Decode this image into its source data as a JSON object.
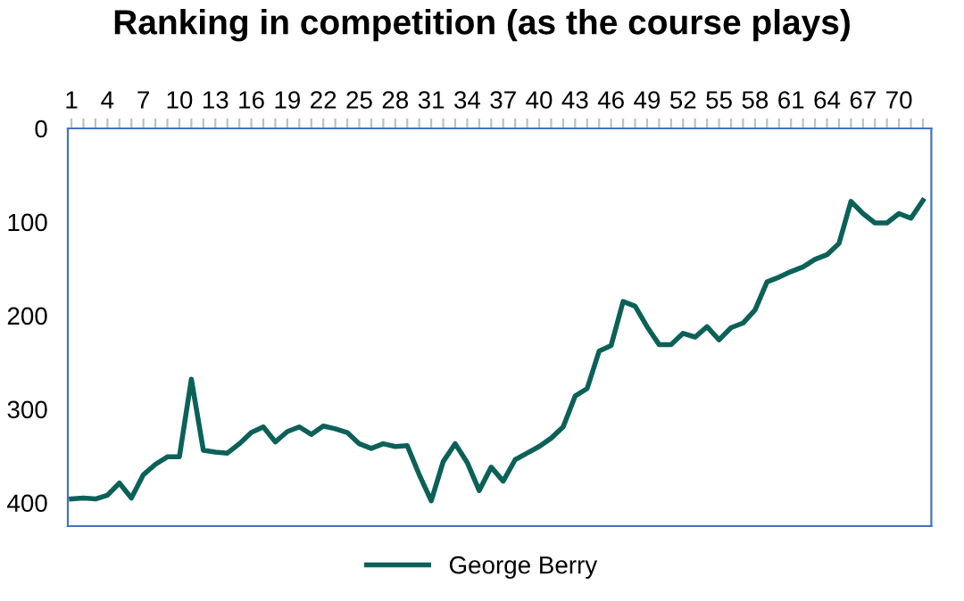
{
  "chart_data": {
    "type": "line",
    "title": "Ranking in competition (as the course plays)",
    "x": [
      1,
      2,
      3,
      4,
      5,
      6,
      7,
      8,
      9,
      10,
      11,
      12,
      13,
      14,
      15,
      16,
      17,
      18,
      19,
      20,
      21,
      22,
      23,
      24,
      25,
      26,
      27,
      28,
      29,
      30,
      31,
      32,
      33,
      34,
      35,
      36,
      37,
      38,
      39,
      40,
      41,
      42,
      43,
      44,
      45,
      46,
      47,
      48,
      49,
      50,
      51,
      52,
      53,
      54,
      55,
      56,
      57,
      58,
      59,
      60,
      61,
      62,
      63,
      64,
      65,
      66,
      67,
      68,
      69,
      70,
      71,
      72
    ],
    "series": [
      {
        "name": "George Berry",
        "color": "#0b6158",
        "values": [
          396,
          395,
          396,
          392,
          379,
          395,
          370,
          359,
          351,
          351,
          268,
          344,
          346,
          347,
          337,
          325,
          319,
          335,
          324,
          319,
          327,
          318,
          321,
          325,
          337,
          342,
          337,
          340,
          339,
          370,
          398,
          356,
          337,
          357,
          387,
          362,
          377,
          354,
          347,
          340,
          331,
          319,
          286,
          278,
          238,
          232,
          185,
          190,
          212,
          231,
          231,
          219,
          223,
          212,
          226,
          213,
          208,
          194,
          164,
          159,
          153,
          148,
          140,
          135,
          123,
          78,
          91,
          101,
          101,
          91,
          96,
          77
        ]
      }
    ],
    "xlim": [
      0.7,
      72.7
    ],
    "xticks": [
      1,
      {
        "value": 2,
        "label": null
      },
      {
        "value": 3,
        "label": null
      },
      4,
      {
        "value": 5,
        "label": null
      },
      {
        "value": 6,
        "label": null
      },
      7,
      {
        "value": 8,
        "label": null
      },
      {
        "value": 9,
        "label": null
      },
      10,
      {
        "value": 11,
        "label": null
      },
      {
        "value": 12,
        "label": null
      },
      13,
      {
        "value": 14,
        "label": null
      },
      {
        "value": 15,
        "label": null
      },
      16,
      {
        "value": 17,
        "label": null
      },
      {
        "value": 18,
        "label": null
      },
      19,
      {
        "value": 20,
        "label": null
      },
      {
        "value": 21,
        "label": null
      },
      22,
      {
        "value": 23,
        "label": null
      },
      {
        "value": 24,
        "label": null
      },
      25,
      {
        "value": 26,
        "label": null
      },
      {
        "value": 27,
        "label": null
      },
      28,
      {
        "value": 29,
        "label": null
      },
      {
        "value": 30,
        "label": null
      },
      31,
      {
        "value": 32,
        "label": null
      },
      {
        "value": 33,
        "label": null
      },
      34,
      {
        "value": 35,
        "label": null
      },
      {
        "value": 36,
        "label": null
      },
      37,
      {
        "value": 38,
        "label": null
      },
      {
        "value": 39,
        "label": null
      },
      40,
      {
        "value": 41,
        "label": null
      },
      {
        "value": 42,
        "label": null
      },
      43,
      {
        "value": 44,
        "label": null
      },
      {
        "value": 45,
        "label": null
      },
      46,
      {
        "value": 47,
        "label": null
      },
      {
        "value": 48,
        "label": null
      },
      49,
      {
        "value": 50,
        "label": null
      },
      {
        "value": 51,
        "label": null
      },
      52,
      {
        "value": 53,
        "label": null
      },
      {
        "value": 54,
        "label": null
      },
      55,
      {
        "value": 56,
        "label": null
      },
      {
        "value": 57,
        "label": null
      },
      58,
      {
        "value": 59,
        "label": null
      },
      {
        "value": 60,
        "label": null
      },
      61,
      {
        "value": 62,
        "label": null
      },
      {
        "value": 63,
        "label": null
      },
      64,
      {
        "value": 65,
        "label": null
      },
      {
        "value": 66,
        "label": null
      },
      67,
      {
        "value": 68,
        "label": null
      },
      {
        "value": 69,
        "label": null
      },
      70,
      {
        "value": 71,
        "label": null
      },
      {
        "value": 72,
        "label": null
      }
    ],
    "ylim": [
      425,
      0
    ],
    "yticks": [
      0,
      100,
      200,
      300,
      400
    ],
    "grid": false,
    "legend": "bottom",
    "marker": "none",
    "line_style": "solid"
  }
}
